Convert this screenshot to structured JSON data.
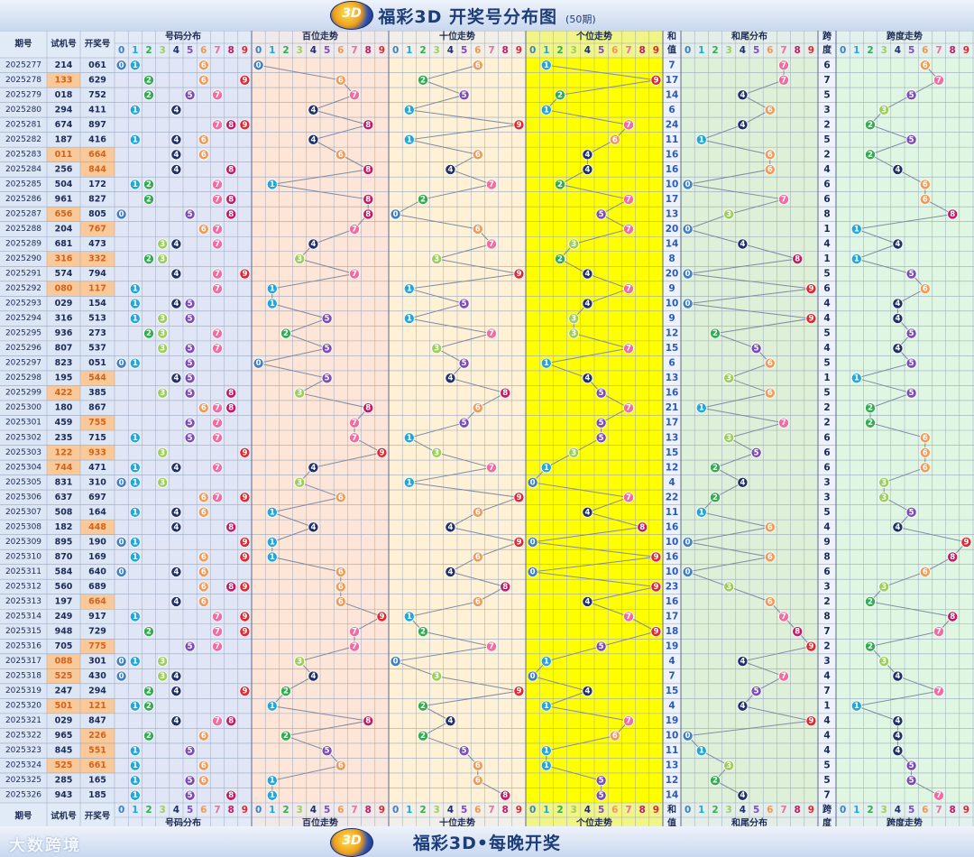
{
  "header": {
    "title": "福彩3D 开奖号分布图",
    "subtitle": "(50期)",
    "logo_text": "3D"
  },
  "footer": {
    "slogan": "福彩3D•每晚开奖",
    "watermark": "大数跨境",
    "logo_text": "3D"
  },
  "columns": {
    "issue": "期号",
    "trial": "试机号",
    "draw": "开奖号",
    "dist": "号码分布",
    "hundreds": "百位走势",
    "tens": "十位走势",
    "units": "个位走势",
    "sum_top": "和",
    "sum_bottom": "值",
    "sumtail": "和尾分布",
    "span_top": "跨",
    "span_bottom": "度",
    "spantrend": "跨度走势"
  },
  "digits": [
    "0",
    "1",
    "2",
    "3",
    "4",
    "5",
    "6",
    "7",
    "8",
    "9"
  ],
  "colors": {
    "d0": "#3f7fc4",
    "d1": "#1fa8dd",
    "d2": "#2fae4f",
    "d3": "#9ccf5a",
    "d4": "#1f2f6b",
    "d5": "#7c4db6",
    "d6": "#f19a57",
    "d7": "#f06ca3",
    "d8": "#c31a66",
    "d9": "#e3262f",
    "units_bg": "#ffff00",
    "hundreds_bg": "#fde5d7",
    "tens_bg": "#fff1d6",
    "dist_bg": "#e1e6f7",
    "sumtail_bg": "#dff0d8",
    "spantrend_bg": "#dff7e2",
    "trial_highlight": "#f9c99a"
  },
  "chart_data": {
    "type": "table",
    "title": "福彩3D 开奖号分布图",
    "rows": [
      {
        "issue": "2025277",
        "trial": "214",
        "draw": "061",
        "sum": "7",
        "span": "6"
      },
      {
        "issue": "2025278",
        "trial": "133",
        "draw": "629",
        "sum": "17",
        "span": "7"
      },
      {
        "issue": "2025279",
        "trial": "018",
        "draw": "752",
        "sum": "14",
        "span": "5"
      },
      {
        "issue": "2025280",
        "trial": "294",
        "draw": "411",
        "sum": "6",
        "span": "3"
      },
      {
        "issue": "2025281",
        "trial": "674",
        "draw": "897",
        "sum": "24",
        "span": "2"
      },
      {
        "issue": "2025282",
        "trial": "187",
        "draw": "416",
        "sum": "11",
        "span": "5"
      },
      {
        "issue": "2025283",
        "trial": "011",
        "draw": "664",
        "sum": "16",
        "span": "2"
      },
      {
        "issue": "2025284",
        "trial": "256",
        "draw": "844",
        "sum": "16",
        "span": "4"
      },
      {
        "issue": "2025285",
        "trial": "504",
        "draw": "172",
        "sum": "10",
        "span": "6"
      },
      {
        "issue": "2025286",
        "trial": "961",
        "draw": "827",
        "sum": "17",
        "span": "6"
      },
      {
        "issue": "2025287",
        "trial": "656",
        "draw": "805",
        "sum": "13",
        "span": "8"
      },
      {
        "issue": "2025288",
        "trial": "204",
        "draw": "767",
        "sum": "20",
        "span": "1"
      },
      {
        "issue": "2025289",
        "trial": "681",
        "draw": "473",
        "sum": "14",
        "span": "4"
      },
      {
        "issue": "2025290",
        "trial": "316",
        "draw": "332",
        "sum": "8",
        "span": "1"
      },
      {
        "issue": "2025291",
        "trial": "574",
        "draw": "794",
        "sum": "20",
        "span": "5"
      },
      {
        "issue": "2025292",
        "trial": "080",
        "draw": "117",
        "sum": "9",
        "span": "6"
      },
      {
        "issue": "2025293",
        "trial": "029",
        "draw": "154",
        "sum": "10",
        "span": "4"
      },
      {
        "issue": "2025294",
        "trial": "316",
        "draw": "513",
        "sum": "9",
        "span": "4"
      },
      {
        "issue": "2025295",
        "trial": "936",
        "draw": "273",
        "sum": "12",
        "span": "5"
      },
      {
        "issue": "2025296",
        "trial": "807",
        "draw": "537",
        "sum": "15",
        "span": "4"
      },
      {
        "issue": "2025297",
        "trial": "823",
        "draw": "051",
        "sum": "6",
        "span": "5"
      },
      {
        "issue": "2025298",
        "trial": "195",
        "draw": "544",
        "sum": "13",
        "span": "1"
      },
      {
        "issue": "2025299",
        "trial": "422",
        "draw": "385",
        "sum": "16",
        "span": "5"
      },
      {
        "issue": "2025300",
        "trial": "180",
        "draw": "867",
        "sum": "21",
        "span": "2"
      },
      {
        "issue": "2025301",
        "trial": "459",
        "draw": "755",
        "sum": "17",
        "span": "2"
      },
      {
        "issue": "2025302",
        "trial": "235",
        "draw": "715",
        "sum": "13",
        "span": "6"
      },
      {
        "issue": "2025303",
        "trial": "122",
        "draw": "933",
        "sum": "15",
        "span": "6"
      },
      {
        "issue": "2025304",
        "trial": "744",
        "draw": "471",
        "sum": "12",
        "span": "6"
      },
      {
        "issue": "2025305",
        "trial": "831",
        "draw": "310",
        "sum": "4",
        "span": "3"
      },
      {
        "issue": "2025306",
        "trial": "637",
        "draw": "697",
        "sum": "22",
        "span": "3"
      },
      {
        "issue": "2025307",
        "trial": "508",
        "draw": "164",
        "sum": "11",
        "span": "5"
      },
      {
        "issue": "2025308",
        "trial": "182",
        "draw": "448",
        "sum": "16",
        "span": "4"
      },
      {
        "issue": "2025309",
        "trial": "895",
        "draw": "190",
        "sum": "10",
        "span": "9"
      },
      {
        "issue": "2025310",
        "trial": "870",
        "draw": "169",
        "sum": "16",
        "span": "8"
      },
      {
        "issue": "2025311",
        "trial": "584",
        "draw": "640",
        "sum": "10",
        "span": "6"
      },
      {
        "issue": "2025312",
        "trial": "560",
        "draw": "689",
        "sum": "23",
        "span": "3"
      },
      {
        "issue": "2025313",
        "trial": "197",
        "draw": "664",
        "sum": "16",
        "span": "2"
      },
      {
        "issue": "2025314",
        "trial": "249",
        "draw": "917",
        "sum": "17",
        "span": "8"
      },
      {
        "issue": "2025315",
        "trial": "948",
        "draw": "729",
        "sum": "18",
        "span": "7"
      },
      {
        "issue": "2025316",
        "trial": "705",
        "draw": "775",
        "sum": "19",
        "span": "2"
      },
      {
        "issue": "2025317",
        "trial": "088",
        "draw": "301",
        "sum": "4",
        "span": "3"
      },
      {
        "issue": "2025318",
        "trial": "525",
        "draw": "430",
        "sum": "7",
        "span": "4"
      },
      {
        "issue": "2025319",
        "trial": "247",
        "draw": "294",
        "sum": "15",
        "span": "7"
      },
      {
        "issue": "2025320",
        "trial": "501",
        "draw": "121",
        "sum": "4",
        "span": "1"
      },
      {
        "issue": "2025321",
        "trial": "029",
        "draw": "847",
        "sum": "19",
        "span": "4"
      },
      {
        "issue": "2025322",
        "trial": "965",
        "draw": "226",
        "sum": "10",
        "span": "4"
      },
      {
        "issue": "2025323",
        "trial": "845",
        "draw": "551",
        "sum": "11",
        "span": "4"
      },
      {
        "issue": "2025324",
        "trial": "525",
        "draw": "661",
        "sum": "13",
        "span": "5"
      },
      {
        "issue": "2025325",
        "trial": "285",
        "draw": "165",
        "sum": "12",
        "span": "5"
      },
      {
        "issue": "2025326",
        "trial": "943",
        "draw": "185",
        "sum": "14",
        "span": "7"
      }
    ],
    "highlighted_trials": [
      "2025278",
      "2025283",
      "2025287",
      "2025290",
      "2025292",
      "2025299",
      "2025303",
      "2025304",
      "2025317",
      "2025318",
      "2025320",
      "2025324"
    ],
    "highlighted_draws": [
      "2025283",
      "2025284",
      "2025288",
      "2025290",
      "2025292",
      "2025298",
      "2025301",
      "2025303",
      "2025308",
      "2025313",
      "2025316",
      "2025320",
      "2025322",
      "2025323",
      "2025324"
    ]
  }
}
